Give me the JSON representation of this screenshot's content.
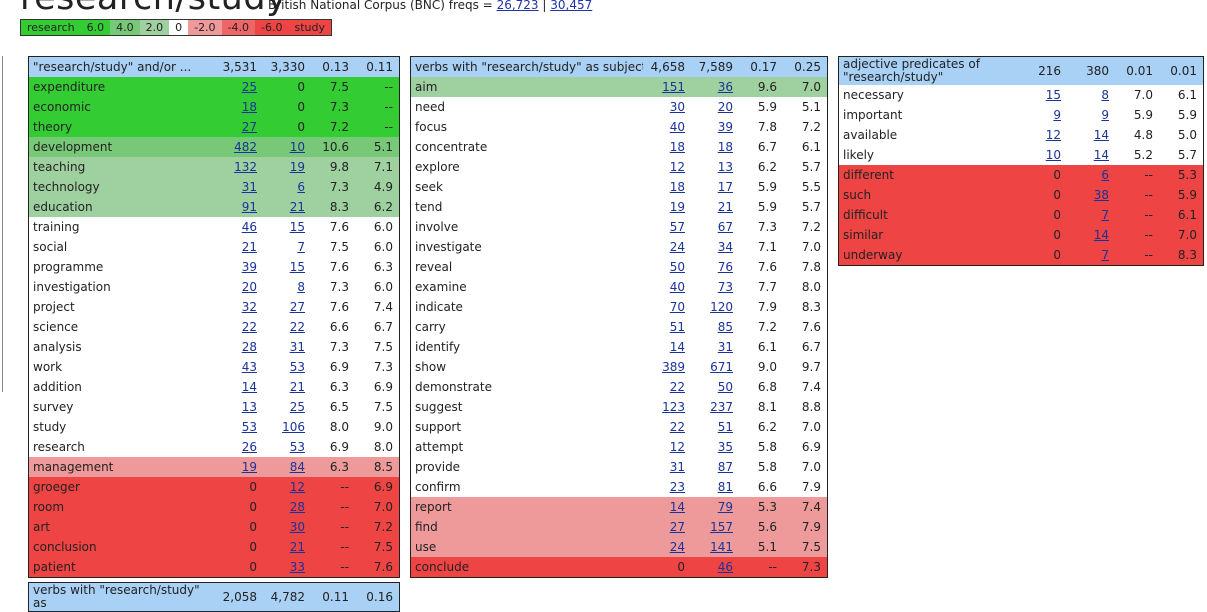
{
  "page": {
    "title": "research/study",
    "corpus_label": "British National Corpus (BNC) freqs = ",
    "freq1": "26,723",
    "separator": " | ",
    "freq2": "30,457"
  },
  "legend": [
    {
      "label": "research",
      "color": "#33cc33"
    },
    {
      "label": "6.0",
      "color": "#33cc33"
    },
    {
      "label": "4.0",
      "color": "#77c977"
    },
    {
      "label": "2.0",
      "color": "#9fd09f"
    },
    {
      "label": "0",
      "color": "#ffffff"
    },
    {
      "label": "-2.0",
      "color": "#ef9a9a"
    },
    {
      "label": "-4.0",
      "color": "#ee6666"
    },
    {
      "label": "-6.0",
      "color": "#ee4444"
    },
    {
      "label": "study",
      "color": "#ee4444"
    }
  ],
  "panels": [
    {
      "title": "\"research/study\" and/or ...",
      "stats": [
        "3,531",
        "3,330",
        "0.13",
        "0.11"
      ],
      "rows": [
        {
          "w": "expenditure",
          "a": "25",
          "b": "0",
          "c": "7.5",
          "d": "--",
          "cls": "g1"
        },
        {
          "w": "economic",
          "a": "18",
          "b": "0",
          "c": "7.3",
          "d": "--",
          "cls": "g1"
        },
        {
          "w": "theory",
          "a": "27",
          "b": "0",
          "c": "7.2",
          "d": "--",
          "cls": "g1"
        },
        {
          "w": "development",
          "a": "482",
          "b": "10",
          "c": "10.6",
          "d": "5.1",
          "cls": "g2"
        },
        {
          "w": "teaching",
          "a": "132",
          "b": "19",
          "c": "9.8",
          "d": "7.1",
          "cls": "g3"
        },
        {
          "w": "technology",
          "a": "31",
          "b": "6",
          "c": "7.3",
          "d": "4.9",
          "cls": "g3"
        },
        {
          "w": "education",
          "a": "91",
          "b": "21",
          "c": "8.3",
          "d": "6.2",
          "cls": "g3"
        },
        {
          "w": "training",
          "a": "46",
          "b": "15",
          "c": "7.6",
          "d": "6.0",
          "cls": ""
        },
        {
          "w": "social",
          "a": "21",
          "b": "7",
          "c": "7.5",
          "d": "6.0",
          "cls": ""
        },
        {
          "w": "programme",
          "a": "39",
          "b": "15",
          "c": "7.6",
          "d": "6.3",
          "cls": ""
        },
        {
          "w": "investigation",
          "a": "20",
          "b": "8",
          "c": "7.3",
          "d": "6.0",
          "cls": ""
        },
        {
          "w": "project",
          "a": "32",
          "b": "27",
          "c": "7.6",
          "d": "7.4",
          "cls": ""
        },
        {
          "w": "science",
          "a": "22",
          "b": "22",
          "c": "6.6",
          "d": "6.7",
          "cls": ""
        },
        {
          "w": "analysis",
          "a": "28",
          "b": "31",
          "c": "7.3",
          "d": "7.5",
          "cls": ""
        },
        {
          "w": "work",
          "a": "43",
          "b": "53",
          "c": "6.9",
          "d": "7.3",
          "cls": ""
        },
        {
          "w": "addition",
          "a": "14",
          "b": "21",
          "c": "6.3",
          "d": "6.9",
          "cls": ""
        },
        {
          "w": "survey",
          "a": "13",
          "b": "25",
          "c": "6.5",
          "d": "7.5",
          "cls": ""
        },
        {
          "w": "study",
          "a": "53",
          "b": "106",
          "c": "8.0",
          "d": "9.0",
          "cls": ""
        },
        {
          "w": "research",
          "a": "26",
          "b": "53",
          "c": "6.9",
          "d": "8.0",
          "cls": ""
        },
        {
          "w": "management",
          "a": "19",
          "b": "84",
          "c": "6.3",
          "d": "8.5",
          "cls": "r1"
        },
        {
          "w": "groeger",
          "a": "0",
          "b": "12",
          "c": "--",
          "d": "6.9",
          "cls": "r2"
        },
        {
          "w": "room",
          "a": "0",
          "b": "28",
          "c": "--",
          "d": "7.0",
          "cls": "r2"
        },
        {
          "w": "art",
          "a": "0",
          "b": "30",
          "c": "--",
          "d": "7.2",
          "cls": "r2"
        },
        {
          "w": "conclusion",
          "a": "0",
          "b": "21",
          "c": "--",
          "d": "7.5",
          "cls": "r2"
        },
        {
          "w": "patient",
          "a": "0",
          "b": "33",
          "c": "--",
          "d": "7.6",
          "cls": "r2"
        }
      ]
    },
    {
      "title": "verbs with \"research/study\" as subject",
      "stats": [
        "4,658",
        "7,589",
        "0.17",
        "0.25"
      ],
      "rows": [
        {
          "w": "aim",
          "a": "151",
          "b": "36",
          "c": "9.6",
          "d": "7.0",
          "cls": "g3"
        },
        {
          "w": "need",
          "a": "30",
          "b": "20",
          "c": "5.9",
          "d": "5.1",
          "cls": ""
        },
        {
          "w": "focus",
          "a": "40",
          "b": "39",
          "c": "7.8",
          "d": "7.2",
          "cls": ""
        },
        {
          "w": "concentrate",
          "a": "18",
          "b": "18",
          "c": "6.7",
          "d": "6.1",
          "cls": ""
        },
        {
          "w": "explore",
          "a": "12",
          "b": "13",
          "c": "6.2",
          "d": "5.7",
          "cls": ""
        },
        {
          "w": "seek",
          "a": "18",
          "b": "17",
          "c": "5.9",
          "d": "5.5",
          "cls": ""
        },
        {
          "w": "tend",
          "a": "19",
          "b": "21",
          "c": "5.9",
          "d": "5.7",
          "cls": ""
        },
        {
          "w": "involve",
          "a": "57",
          "b": "67",
          "c": "7.3",
          "d": "7.2",
          "cls": ""
        },
        {
          "w": "investigate",
          "a": "24",
          "b": "34",
          "c": "7.1",
          "d": "7.0",
          "cls": ""
        },
        {
          "w": "reveal",
          "a": "50",
          "b": "76",
          "c": "7.6",
          "d": "7.8",
          "cls": ""
        },
        {
          "w": "examine",
          "a": "40",
          "b": "73",
          "c": "7.7",
          "d": "8.0",
          "cls": ""
        },
        {
          "w": "indicate",
          "a": "70",
          "b": "120",
          "c": "7.9",
          "d": "8.3",
          "cls": ""
        },
        {
          "w": "carry",
          "a": "51",
          "b": "85",
          "c": "7.2",
          "d": "7.6",
          "cls": ""
        },
        {
          "w": "identify",
          "a": "14",
          "b": "31",
          "c": "6.1",
          "d": "6.7",
          "cls": ""
        },
        {
          "w": "show",
          "a": "389",
          "b": "671",
          "c": "9.0",
          "d": "9.7",
          "cls": ""
        },
        {
          "w": "demonstrate",
          "a": "22",
          "b": "50",
          "c": "6.8",
          "d": "7.4",
          "cls": ""
        },
        {
          "w": "suggest",
          "a": "123",
          "b": "237",
          "c": "8.1",
          "d": "8.8",
          "cls": ""
        },
        {
          "w": "support",
          "a": "22",
          "b": "51",
          "c": "6.2",
          "d": "7.0",
          "cls": ""
        },
        {
          "w": "attempt",
          "a": "12",
          "b": "35",
          "c": "5.8",
          "d": "6.9",
          "cls": ""
        },
        {
          "w": "provide",
          "a": "31",
          "b": "87",
          "c": "5.8",
          "d": "7.0",
          "cls": ""
        },
        {
          "w": "confirm",
          "a": "23",
          "b": "81",
          "c": "6.6",
          "d": "7.9",
          "cls": ""
        },
        {
          "w": "report",
          "a": "14",
          "b": "79",
          "c": "5.3",
          "d": "7.4",
          "cls": "r1"
        },
        {
          "w": "find",
          "a": "27",
          "b": "157",
          "c": "5.6",
          "d": "7.9",
          "cls": "r1"
        },
        {
          "w": "use",
          "a": "24",
          "b": "141",
          "c": "5.1",
          "d": "7.5",
          "cls": "r1"
        },
        {
          "w": "conclude",
          "a": "0",
          "b": "46",
          "c": "--",
          "d": "7.3",
          "cls": "r2"
        }
      ]
    },
    {
      "title": "adjective predicates of \"research/study\"",
      "stats": [
        "216",
        "380",
        "0.01",
        "0.01"
      ],
      "rows": [
        {
          "w": "necessary",
          "a": "15",
          "b": "8",
          "c": "7.0",
          "d": "6.1",
          "cls": ""
        },
        {
          "w": "important",
          "a": "9",
          "b": "9",
          "c": "5.9",
          "d": "5.9",
          "cls": ""
        },
        {
          "w": "available",
          "a": "12",
          "b": "14",
          "c": "4.8",
          "d": "5.0",
          "cls": ""
        },
        {
          "w": "likely",
          "a": "10",
          "b": "14",
          "c": "5.2",
          "d": "5.7",
          "cls": ""
        },
        {
          "w": "different",
          "a": "0",
          "b": "6",
          "c": "--",
          "d": "5.3",
          "cls": "r2"
        },
        {
          "w": "such",
          "a": "0",
          "b": "38",
          "c": "--",
          "d": "5.9",
          "cls": "r2"
        },
        {
          "w": "difficult",
          "a": "0",
          "b": "7",
          "c": "--",
          "d": "6.1",
          "cls": "r2"
        },
        {
          "w": "similar",
          "a": "0",
          "b": "14",
          "c": "--",
          "d": "7.0",
          "cls": "r2"
        },
        {
          "w": "underway",
          "a": "0",
          "b": "7",
          "c": "--",
          "d": "8.3",
          "cls": "r2"
        }
      ]
    },
    {
      "title": "verbs with \"research/study\" as",
      "stats": [
        "2,058",
        "4,782",
        "0.11",
        "0.16"
      ],
      "rows": []
    }
  ]
}
